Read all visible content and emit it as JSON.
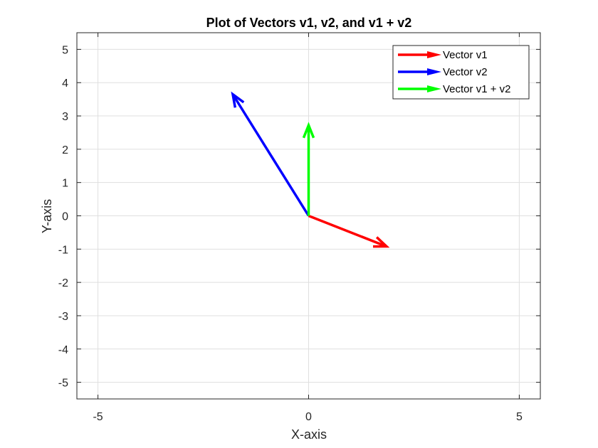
{
  "chart_data": {
    "type": "quiver",
    "title": "Plot of Vectors v1, v2, and v1 + v2",
    "xlabel": "X-axis",
    "ylabel": "Y-axis",
    "xlim": [
      -5.5,
      5.5
    ],
    "ylim": [
      -5.5,
      5.5
    ],
    "xticks": [
      -5,
      0,
      5
    ],
    "yticks": [
      5,
      4,
      3,
      2,
      1,
      0,
      -1,
      -2,
      -3,
      -4,
      -5
    ],
    "xtick_labels": [
      "-5",
      "0",
      "5"
    ],
    "ytick_labels": [
      "5",
      "4",
      "3",
      "2",
      "1",
      "0",
      "-1",
      "-2",
      "-3",
      "-4",
      "-5"
    ],
    "grid": true,
    "legend_position": "top-right",
    "series": [
      {
        "name": "Vector v1",
        "color": "#ff0000",
        "start": [
          0,
          0
        ],
        "end": [
          1.85,
          -0.92
        ]
      },
      {
        "name": "Vector v2",
        "color": "#0000ff",
        "start": [
          0,
          0
        ],
        "end": [
          -1.8,
          3.65
        ]
      },
      {
        "name": "Vector v1 + v2",
        "color": "#00ff00",
        "start": [
          0,
          0
        ],
        "end": [
          0,
          2.72
        ]
      }
    ]
  }
}
